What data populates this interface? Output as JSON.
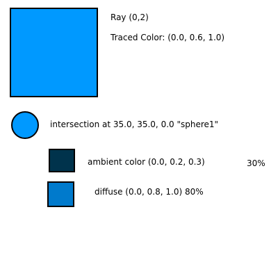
{
  "ray": {
    "label": "Ray (0,2)",
    "traced_color_label": "Traced Color: (0.0, 0.6, 1.0)",
    "traced_color_hex": "#0099ff"
  },
  "intersection": {
    "label": "intersection at 35.0, 35.0, 0.0 \"sphere1\"",
    "color_hex": "#0099ff"
  },
  "ambient": {
    "label": "ambient color (0.0, 0.2, 0.3)",
    "percent_label": "30%",
    "color_hex": "#00334c"
  },
  "diffuse": {
    "label": "diffuse (0.0, 0.8, 1.0) 80%",
    "color_hex": "#007acc"
  }
}
